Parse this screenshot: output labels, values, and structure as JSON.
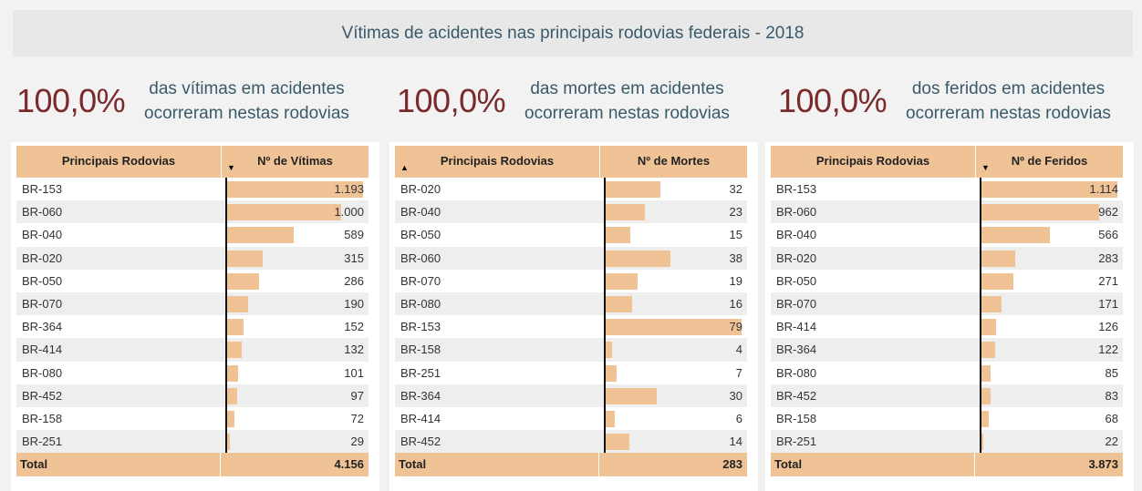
{
  "title": "Vítimas de acidentes nas principais rodovias federais - 2018",
  "kpis": [
    {
      "pct": "100,0%",
      "line1": "das vítimas em acidentes",
      "line2": "ocorreram nestas rodovias"
    },
    {
      "pct": "100,0%",
      "line1": "das mortes em acidentes",
      "line2": "ocorreram nestas rodovias"
    },
    {
      "pct": "100,0%",
      "line1": "dos feridos em acidentes",
      "line2": "ocorreram nestas rodovias"
    }
  ],
  "tables": [
    {
      "col1": "Principais Rodovias",
      "col2": "Nº de Vítimas",
      "sort": "▼",
      "sort_col": 2,
      "max": 1193,
      "rows": [
        {
          "road": "BR-153",
          "value": 1193,
          "label": "1.193"
        },
        {
          "road": "BR-060",
          "value": 1000,
          "label": "1.000"
        },
        {
          "road": "BR-040",
          "value": 589,
          "label": "589"
        },
        {
          "road": "BR-020",
          "value": 315,
          "label": "315"
        },
        {
          "road": "BR-050",
          "value": 286,
          "label": "286"
        },
        {
          "road": "BR-070",
          "value": 190,
          "label": "190"
        },
        {
          "road": "BR-364",
          "value": 152,
          "label": "152"
        },
        {
          "road": "BR-414",
          "value": 132,
          "label": "132"
        },
        {
          "road": "BR-080",
          "value": 101,
          "label": "101"
        },
        {
          "road": "BR-452",
          "value": 97,
          "label": "97"
        },
        {
          "road": "BR-158",
          "value": 72,
          "label": "72"
        },
        {
          "road": "BR-251",
          "value": 29,
          "label": "29"
        }
      ],
      "total_label": "Total",
      "total": "4.156"
    },
    {
      "col1": "Principais Rodovias",
      "col2": "Nº de Mortes",
      "sort": "▲",
      "sort_col": 1,
      "max": 79,
      "rows": [
        {
          "road": "BR-020",
          "value": 32,
          "label": "32"
        },
        {
          "road": "BR-040",
          "value": 23,
          "label": "23"
        },
        {
          "road": "BR-050",
          "value": 15,
          "label": "15"
        },
        {
          "road": "BR-060",
          "value": 38,
          "label": "38"
        },
        {
          "road": "BR-070",
          "value": 19,
          "label": "19"
        },
        {
          "road": "BR-080",
          "value": 16,
          "label": "16"
        },
        {
          "road": "BR-153",
          "value": 79,
          "label": "79"
        },
        {
          "road": "BR-158",
          "value": 4,
          "label": "4"
        },
        {
          "road": "BR-251",
          "value": 7,
          "label": "7"
        },
        {
          "road": "BR-364",
          "value": 30,
          "label": "30"
        },
        {
          "road": "BR-414",
          "value": 6,
          "label": "6"
        },
        {
          "road": "BR-452",
          "value": 14,
          "label": "14"
        }
      ],
      "total_label": "Total",
      "total": "283"
    },
    {
      "col1": "Principais Rodovias",
      "col2": "Nº de Feridos",
      "sort": "▼",
      "sort_col": 2,
      "max": 1114,
      "rows": [
        {
          "road": "BR-153",
          "value": 1114,
          "label": "1.114"
        },
        {
          "road": "BR-060",
          "value": 962,
          "label": "962"
        },
        {
          "road": "BR-040",
          "value": 566,
          "label": "566"
        },
        {
          "road": "BR-020",
          "value": 283,
          "label": "283"
        },
        {
          "road": "BR-050",
          "value": 271,
          "label": "271"
        },
        {
          "road": "BR-070",
          "value": 171,
          "label": "171"
        },
        {
          "road": "BR-414",
          "value": 126,
          "label": "126"
        },
        {
          "road": "BR-364",
          "value": 122,
          "label": "122"
        },
        {
          "road": "BR-080",
          "value": 85,
          "label": "85"
        },
        {
          "road": "BR-452",
          "value": 83,
          "label": "83"
        },
        {
          "road": "BR-158",
          "value": 68,
          "label": "68"
        },
        {
          "road": "BR-251",
          "value": 22,
          "label": "22"
        }
      ],
      "total_label": "Total",
      "total": "3.873"
    }
  ]
}
